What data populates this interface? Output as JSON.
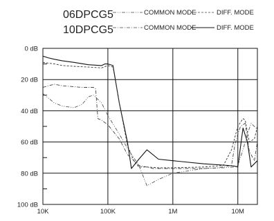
{
  "chart_data": {
    "type": "line",
    "title": "",
    "xlabel": "",
    "ylabel": "",
    "x_scale": "log",
    "xlim": [
      10000,
      20000000
    ],
    "ylim": [
      0,
      100
    ],
    "y_inverted": true,
    "grid": true,
    "legend_placement": "top",
    "x_tick_labels": [
      "10K",
      "100K",
      "1M",
      "10M"
    ],
    "x_tick_values": [
      10000,
      100000,
      1000000,
      10000000
    ],
    "y_tick_labels": [
      "0 dB",
      "20 dB",
      "40 dB",
      "60 dB",
      "80 dB",
      "100 dB"
    ],
    "y_tick_values": [
      0,
      20,
      40,
      60,
      80,
      100
    ],
    "legend": [
      {
        "part": "06DPCG5",
        "entries": [
          {
            "label": "COMMON MODE",
            "style": "dashdotdot"
          },
          {
            "label": "DIFF. MODE",
            "style": "dashed"
          }
        ]
      },
      {
        "part": "10DPCG5",
        "entries": [
          {
            "label": "COMMON MODE",
            "style": "dashdot"
          },
          {
            "label": "DIFF. MODE",
            "style": "solid"
          }
        ]
      }
    ],
    "series": [
      {
        "part": "10DPCG5",
        "mode": "DIFF. MODE",
        "style": "solid",
        "points": [
          [
            10000,
            5
          ],
          [
            12000,
            6
          ],
          [
            15000,
            7
          ],
          [
            20000,
            8
          ],
          [
            30000,
            9
          ],
          [
            50000,
            10.5
          ],
          [
            80000,
            11
          ],
          [
            90000,
            10
          ],
          [
            100000,
            10
          ],
          [
            120000,
            11
          ],
          [
            150000,
            35
          ],
          [
            200000,
            60
          ],
          [
            230000,
            77
          ],
          [
            300000,
            71
          ],
          [
            400000,
            65
          ],
          [
            600000,
            71
          ],
          [
            1000000,
            72
          ],
          [
            3000000,
            74
          ],
          [
            7000000,
            75
          ],
          [
            9000000,
            75.5
          ],
          [
            10000000,
            76
          ],
          [
            11000000,
            63
          ],
          [
            12000000,
            51
          ],
          [
            14000000,
            60
          ],
          [
            16000000,
            76
          ],
          [
            20000000,
            72
          ]
        ]
      },
      {
        "part": "06DPCG5",
        "mode": "DIFF. MODE",
        "style": "dashed",
        "points": [
          [
            10000,
            9
          ],
          [
            15000,
            10
          ],
          [
            20000,
            11
          ],
          [
            30000,
            11.5
          ],
          [
            50000,
            12
          ],
          [
            80000,
            12.5
          ],
          [
            100000,
            11
          ],
          [
            120000,
            12
          ],
          [
            150000,
            35
          ],
          [
            200000,
            62
          ],
          [
            250000,
            72
          ],
          [
            300000,
            76
          ],
          [
            400000,
            76
          ],
          [
            600000,
            76.5
          ],
          [
            1000000,
            76.5
          ],
          [
            3000000,
            76
          ],
          [
            6000000,
            75
          ],
          [
            8000000,
            65
          ],
          [
            10000000,
            50
          ],
          [
            12000000,
            45
          ],
          [
            13000000,
            46
          ],
          [
            15000000,
            60
          ],
          [
            18000000,
            58
          ],
          [
            20000000,
            50
          ]
        ]
      },
      {
        "part": "10DPCG5",
        "mode": "COMMON MODE",
        "style": "dashdot",
        "points": [
          [
            10000,
            25
          ],
          [
            15000,
            23
          ],
          [
            20000,
            24
          ],
          [
            40000,
            25
          ],
          [
            60000,
            25
          ],
          [
            65000,
            26
          ],
          [
            70000,
            45
          ],
          [
            80000,
            46
          ],
          [
            100000,
            49
          ],
          [
            150000,
            58
          ],
          [
            200000,
            68
          ],
          [
            300000,
            75
          ],
          [
            500000,
            77
          ],
          [
            1000000,
            77
          ],
          [
            3000000,
            77
          ],
          [
            5000000,
            76.5
          ],
          [
            8000000,
            75
          ],
          [
            9000000,
            62
          ],
          [
            10000000,
            55
          ],
          [
            11000000,
            50
          ],
          [
            13000000,
            48
          ],
          [
            15000000,
            66
          ],
          [
            18000000,
            72
          ],
          [
            20000000,
            60
          ]
        ]
      },
      {
        "part": "06DPCG5",
        "mode": "COMMON MODE",
        "style": "dashdotdot",
        "points": [
          [
            10000,
            29
          ],
          [
            15000,
            35
          ],
          [
            20000,
            37
          ],
          [
            30000,
            38
          ],
          [
            40000,
            36
          ],
          [
            50000,
            31
          ],
          [
            60000,
            30
          ],
          [
            80000,
            35
          ],
          [
            100000,
            43
          ],
          [
            150000,
            55
          ],
          [
            200000,
            64
          ],
          [
            300000,
            75
          ],
          [
            400000,
            88
          ],
          [
            600000,
            84
          ],
          [
            1000000,
            80
          ],
          [
            3000000,
            77
          ],
          [
            6000000,
            76.5
          ],
          [
            9000000,
            76
          ],
          [
            10000000,
            75
          ],
          [
            12000000,
            65
          ],
          [
            14000000,
            55
          ],
          [
            16000000,
            48
          ],
          [
            20000000,
            52
          ]
        ]
      }
    ]
  }
}
